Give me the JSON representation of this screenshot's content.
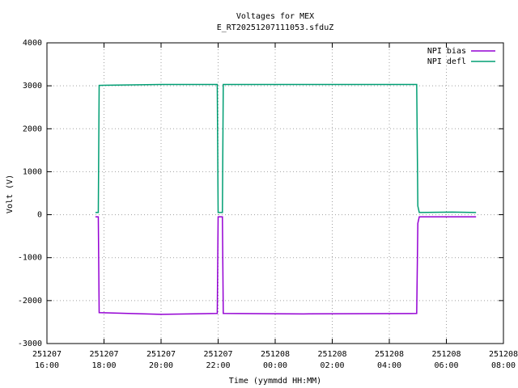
{
  "chart_data": {
    "type": "line",
    "title": "Voltages for MEX",
    "subtitle": "E_RT20251207111053.sfduZ",
    "x_label": "Time (yymmdd HH:MM)",
    "y_label": "Volt (V)",
    "x": [
      17.7,
      17.8,
      17.83,
      20.0,
      21.97,
      22.0,
      22.15,
      22.18,
      25.0,
      28.96,
      29.0,
      29.05,
      30.2,
      31.04
    ],
    "series": [
      {
        "name": "NPI bias",
        "color": "#9400d3",
        "values": [
          -50,
          -50,
          -2280,
          -2320,
          -2300,
          -50,
          -50,
          -2300,
          -2310,
          -2300,
          -200,
          -50,
          -50,
          -50
        ]
      },
      {
        "name": "NPI defl",
        "color": "#009e73",
        "values": [
          50,
          50,
          3010,
          3030,
          3030,
          50,
          50,
          3030,
          3030,
          3030,
          200,
          50,
          60,
          50
        ]
      }
    ],
    "xlim": [
      16,
      32
    ],
    "xticks": [
      {
        "value": 16,
        "label": "251207\n16:00"
      },
      {
        "value": 18,
        "label": "251207\n18:00"
      },
      {
        "value": 20,
        "label": "251207\n20:00"
      },
      {
        "value": 22,
        "label": "251207\n22:00"
      },
      {
        "value": 24,
        "label": "251208\n00:00"
      },
      {
        "value": 26,
        "label": "251208\n02:00"
      },
      {
        "value": 28,
        "label": "251208\n04:00"
      },
      {
        "value": 30,
        "label": "251208\n06:00"
      },
      {
        "value": 32,
        "label": "251208\n08:00"
      }
    ],
    "ylim": [
      -3000,
      4000
    ],
    "yticks": [
      -3000,
      -2000,
      -1000,
      0,
      1000,
      2000,
      3000,
      4000
    ],
    "grid": true,
    "legend": "top-right"
  }
}
